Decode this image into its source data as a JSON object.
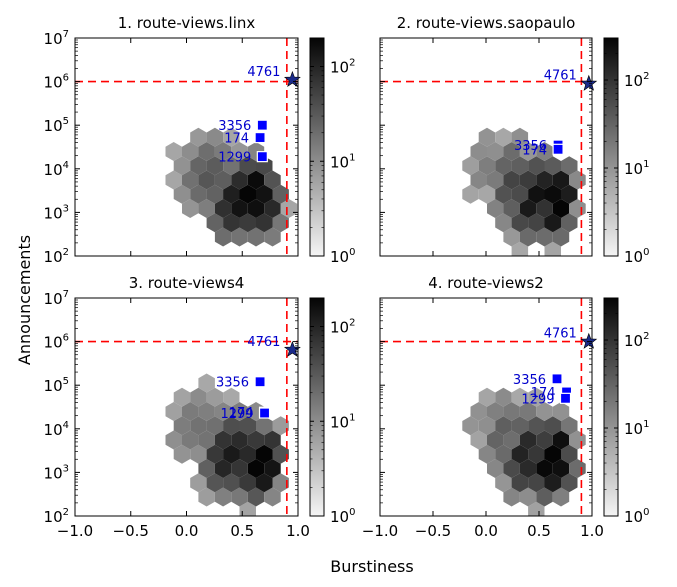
{
  "figure": {
    "xlabel": "Burstiness",
    "ylabel": "Announcements",
    "x_ticks": [
      "−1.0",
      "−0.5",
      "0.0",
      "0.5",
      "1.0"
    ],
    "y_ticks": [
      {
        "base": "10",
        "exp": "2"
      },
      {
        "base": "10",
        "exp": "3"
      },
      {
        "base": "10",
        "exp": "4"
      },
      {
        "base": "10",
        "exp": "5"
      },
      {
        "base": "10",
        "exp": "6"
      },
      {
        "base": "10",
        "exp": "7"
      }
    ],
    "colorbar_ticks": [
      {
        "base": "10",
        "exp": "0"
      },
      {
        "base": "10",
        "exp": "1"
      },
      {
        "base": "10",
        "exp": "2"
      }
    ],
    "colors": {
      "threshold_line": "#ff0000",
      "marker_fill": "#0000ff",
      "label_text": "#0000cc",
      "colormap": "Greys"
    }
  },
  "chart_data": [
    {
      "type": "hexbin",
      "title": "1. route-views.linx",
      "xlim": [
        -1.0,
        1.0
      ],
      "ylim": [
        100,
        10000000
      ],
      "yscale": "log",
      "thresholds": {
        "x": 0.9,
        "y": 1000000
      },
      "colorbar": {
        "scale": "log",
        "range": [
          1,
          200
        ]
      },
      "highlights": [
        {
          "label": "4761",
          "x": 0.95,
          "y": 1100000,
          "marker": "star"
        },
        {
          "label": "3356",
          "x": 0.68,
          "y": 100000,
          "marker": "square"
        },
        {
          "label": "174",
          "x": 0.66,
          "y": 52000,
          "marker": "square"
        },
        {
          "label": "1299",
          "x": 0.68,
          "y": 19000,
          "marker": "square"
        }
      ]
    },
    {
      "type": "hexbin",
      "title": "2. route-views.saopaulo",
      "xlim": [
        -1.0,
        1.0
      ],
      "ylim": [
        100,
        10000000
      ],
      "yscale": "log",
      "thresholds": {
        "x": 0.9,
        "y": 1000000
      },
      "colorbar": {
        "scale": "log",
        "range": [
          1,
          300
        ]
      },
      "highlights": [
        {
          "label": "4761",
          "x": 0.97,
          "y": 900000,
          "marker": "star"
        },
        {
          "label": "3356",
          "x": 0.68,
          "y": 35000,
          "marker": "square"
        },
        {
          "label": "174",
          "x": 0.68,
          "y": 28000,
          "marker": "square"
        }
      ]
    },
    {
      "type": "hexbin",
      "title": "3. route-views4",
      "xlim": [
        -1.0,
        1.0
      ],
      "ylim": [
        100,
        10000000
      ],
      "yscale": "log",
      "thresholds": {
        "x": 0.9,
        "y": 1000000
      },
      "colorbar": {
        "scale": "log",
        "range": [
          1,
          200
        ]
      },
      "highlights": [
        {
          "label": "4761",
          "x": 0.95,
          "y": 650000,
          "marker": "star"
        },
        {
          "label": "3356",
          "x": 0.66,
          "y": 120000,
          "marker": "square"
        },
        {
          "label": "174",
          "x": 0.7,
          "y": 24000,
          "marker": "square"
        },
        {
          "label": "1299",
          "x": 0.7,
          "y": 23000,
          "marker": "square"
        }
      ]
    },
    {
      "type": "hexbin",
      "title": "4. route-views2",
      "xlim": [
        -1.0,
        1.0
      ],
      "ylim": [
        100,
        10000000
      ],
      "yscale": "log",
      "thresholds": {
        "x": 0.9,
        "y": 1000000
      },
      "colorbar": {
        "scale": "log",
        "range": [
          1,
          300
        ]
      },
      "highlights": [
        {
          "label": "4761",
          "x": 0.97,
          "y": 1000000,
          "marker": "star"
        },
        {
          "label": "3356",
          "x": 0.67,
          "y": 140000,
          "marker": "square"
        },
        {
          "label": "174",
          "x": 0.76,
          "y": 70000,
          "marker": "square"
        },
        {
          "label": "1299",
          "x": 0.75,
          "y": 50000,
          "marker": "square"
        }
      ]
    }
  ]
}
